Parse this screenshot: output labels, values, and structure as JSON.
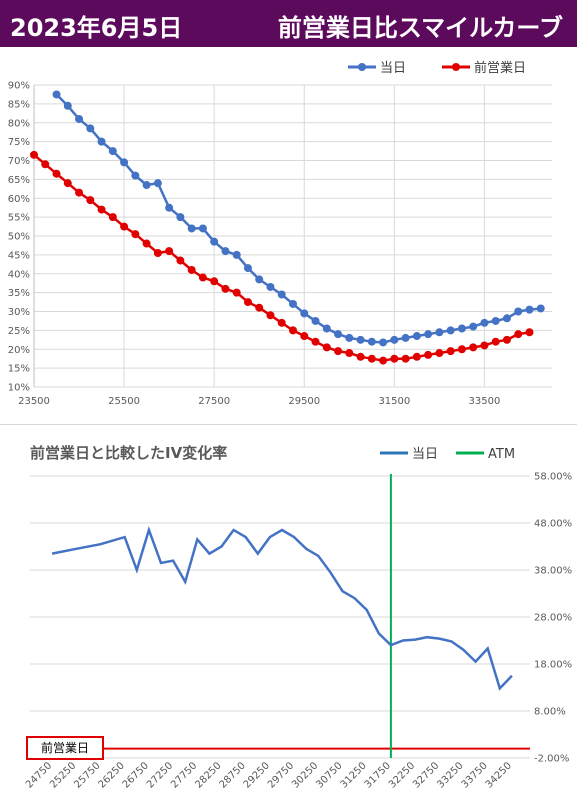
{
  "header": {
    "date": "2023年6月5日",
    "title": "前営業日比スマイルカーブ"
  },
  "chart_data": [
    {
      "type": "line",
      "title": "",
      "x_ticks": [
        "23500",
        "25500",
        "27500",
        "29500",
        "31500",
        "33500"
      ],
      "xlim": [
        23500,
        35000
      ],
      "y_ticks": [
        "10%",
        "15%",
        "20%",
        "25%",
        "30%",
        "35%",
        "40%",
        "45%",
        "50%",
        "55%",
        "60%",
        "65%",
        "70%",
        "75%",
        "80%",
        "85%",
        "90%"
      ],
      "ylim": [
        10,
        90
      ],
      "grid": true,
      "legend_position": "top-right",
      "series": [
        {
          "name": "当日",
          "color": "#4472c4",
          "x": [
            24000,
            24250,
            24500,
            24750,
            25000,
            25250,
            25500,
            25750,
            26000,
            26250,
            26500,
            26750,
            27000,
            27250,
            27500,
            27750,
            28000,
            28250,
            28500,
            28750,
            29000,
            29250,
            29500,
            29750,
            30000,
            30250,
            30500,
            30750,
            31000,
            31250,
            31500,
            31750,
            32000,
            32250,
            32500,
            32750,
            33000,
            33250,
            33500,
            33750,
            34000,
            34250,
            34500,
            34750
          ],
          "values": [
            87.5,
            84.5,
            81,
            78.5,
            75,
            72.5,
            69.5,
            66,
            63.5,
            64,
            57.5,
            55,
            52,
            52,
            48.5,
            46,
            45,
            41.5,
            38.5,
            36.5,
            34.5,
            32,
            29.5,
            27.5,
            25.5,
            24,
            23,
            22.5,
            22,
            21.8,
            22.5,
            23,
            23.5,
            24,
            24.5,
            25,
            25.5,
            26,
            27,
            27.5,
            28.2,
            30,
            30.5,
            30.8
          ]
        },
        {
          "name": "前営業日",
          "color": "#e00000",
          "x": [
            23500,
            23750,
            24000,
            24250,
            24500,
            24750,
            25000,
            25250,
            25500,
            25750,
            26000,
            26250,
            26500,
            26750,
            27000,
            27250,
            27500,
            27750,
            28000,
            28250,
            28500,
            28750,
            29000,
            29250,
            29500,
            29750,
            30000,
            30250,
            30500,
            30750,
            31000,
            31250,
            31500,
            31750,
            32000,
            32250,
            32500,
            32750,
            33000,
            33250,
            33500,
            33750,
            34000,
            34250,
            34500
          ],
          "values": [
            71.5,
            69,
            66.5,
            64,
            61.5,
            59.5,
            57,
            55,
            52.5,
            50.5,
            48,
            45.5,
            46,
            43.5,
            41,
            39,
            38,
            36,
            35,
            32.5,
            31,
            29,
            27,
            25,
            23.5,
            22,
            20.5,
            19.5,
            19,
            18,
            17.5,
            17,
            17.5,
            17.5,
            18,
            18.5,
            19,
            19.5,
            20,
            20.5,
            21,
            22,
            22.5,
            24,
            24.5
          ]
        }
      ]
    },
    {
      "type": "line",
      "title": "前営業日と比較したIV変化率",
      "categories": [
        "24750",
        "25250",
        "25750",
        "26250",
        "26750",
        "27250",
        "27750",
        "28250",
        "28750",
        "29250",
        "29750",
        "30250",
        "30750",
        "31250",
        "31750",
        "32250",
        "32750",
        "33250",
        "33750",
        "34250"
      ],
      "x": [
        24750,
        25250,
        25750,
        26250,
        26500,
        26750,
        27000,
        27250,
        27500,
        27750,
        28000,
        28250,
        28500,
        28750,
        29000,
        29250,
        29500,
        29750,
        30000,
        30250,
        30500,
        30750,
        31000,
        31250,
        31500,
        31750,
        32000,
        32250,
        32500,
        32750,
        33000,
        33250,
        33500,
        33750,
        34000,
        34250
      ],
      "xlim": [
        24500,
        34500
      ],
      "y_ticks": [
        "58.00%",
        "48.00%",
        "38.00%",
        "28.00%",
        "18.00%",
        "8.00%",
        "-2.00%"
      ],
      "ylim": [
        -2,
        58
      ],
      "grid": true,
      "legend_position": "top-right",
      "series": [
        {
          "name": "当日",
          "color": "#4472c4",
          "values": [
            41.5,
            42.5,
            43.5,
            45,
            38,
            46.5,
            39.5,
            40,
            35.5,
            44.5,
            41.5,
            43,
            46.5,
            45,
            41.5,
            45,
            46.5,
            45,
            42.5,
            41,
            37.5,
            33.5,
            32,
            29.5,
            24.5,
            22,
            23,
            23.2,
            23.7,
            23.4,
            22.8,
            21,
            18.5,
            21.3,
            12.8,
            15.5
          ]
        }
      ],
      "atm": {
        "name": "ATM",
        "x": 31750,
        "color": "#00b050"
      },
      "reference": {
        "label": "前営業日",
        "y": 0,
        "color": "#e00000"
      }
    }
  ]
}
